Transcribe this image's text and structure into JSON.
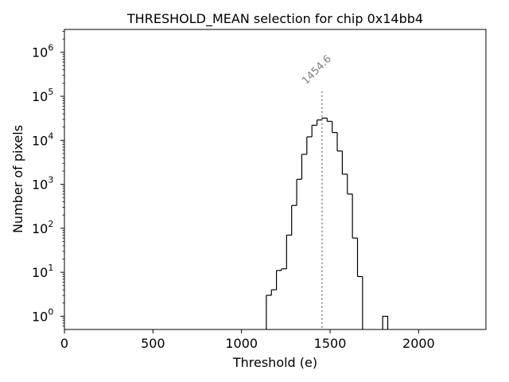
{
  "chart_data": {
    "type": "histogram",
    "title": "THRESHOLD_MEAN selection for chip 0x14bb4",
    "xlabel": "Threshold (e)",
    "ylabel": "Number of pixels",
    "xlim": [
      0,
      2380
    ],
    "ylim_log10": [
      -0.3,
      6.52
    ],
    "yscale": "log",
    "x_ticks": [
      {
        "value": 0,
        "label": "0"
      },
      {
        "value": 500,
        "label": "500"
      },
      {
        "value": 1000,
        "label": "1000"
      },
      {
        "value": 1500,
        "label": "1500"
      },
      {
        "value": 2000,
        "label": "2000"
      }
    ],
    "y_ticks": [
      {
        "exp": 0,
        "base": "10",
        "sup": "0"
      },
      {
        "exp": 1,
        "base": "10",
        "sup": "1"
      },
      {
        "exp": 2,
        "base": "10",
        "sup": "2"
      },
      {
        "exp": 3,
        "base": "10",
        "sup": "3"
      },
      {
        "exp": 4,
        "base": "10",
        "sup": "4"
      },
      {
        "exp": 5,
        "base": "10",
        "sup": "5"
      },
      {
        "exp": 6,
        "base": "10",
        "sup": "6"
      }
    ],
    "bin_width": 28.6,
    "bins": [
      {
        "x0": 1140,
        "count": 3
      },
      {
        "x0": 1168.6,
        "count": 4
      },
      {
        "x0": 1197.2,
        "count": 11
      },
      {
        "x0": 1225.8,
        "count": 12
      },
      {
        "x0": 1254.4,
        "count": 70
      },
      {
        "x0": 1283,
        "count": 330
      },
      {
        "x0": 1311.6,
        "count": 1300
      },
      {
        "x0": 1340.2,
        "count": 4800
      },
      {
        "x0": 1368.8,
        "count": 12000
      },
      {
        "x0": 1397.4,
        "count": 22000
      },
      {
        "x0": 1426,
        "count": 29000
      },
      {
        "x0": 1454.6,
        "count": 32000
      },
      {
        "x0": 1483.2,
        "count": 27000
      },
      {
        "x0": 1511.8,
        "count": 15000
      },
      {
        "x0": 1540.4,
        "count": 5700
      },
      {
        "x0": 1569,
        "count": 1700
      },
      {
        "x0": 1597.6,
        "count": 600
      },
      {
        "x0": 1626.2,
        "count": 60
      },
      {
        "x0": 1654.8,
        "count": 8
      }
    ],
    "isolated_bins": [
      {
        "x0": 1797,
        "x1": 1825.6,
        "count": 1
      }
    ],
    "marker": {
      "x": 1454.6,
      "label": "1454.6",
      "top_count": 130000
    }
  }
}
